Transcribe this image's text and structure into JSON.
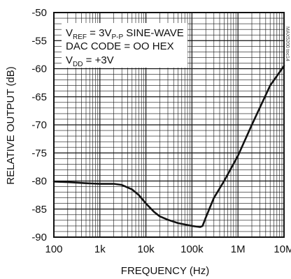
{
  "chart_data": {
    "type": "line",
    "xscale": "log",
    "xlim": [
      100,
      10000000
    ],
    "ylim": [
      -90,
      -50
    ],
    "xlabel": "FREQUENCY (Hz)",
    "ylabel": "RELATIVE OUTPUT (dB)",
    "x_ticks": [
      {
        "value": 100,
        "label": "100"
      },
      {
        "value": 1000,
        "label": "1k"
      },
      {
        "value": 10000,
        "label": "10k"
      },
      {
        "value": 100000,
        "label": "100k"
      },
      {
        "value": 1000000,
        "label": "1M"
      },
      {
        "value": 10000000,
        "label": "10M"
      }
    ],
    "y_ticks": [
      {
        "value": -50,
        "label": "-50"
      },
      {
        "value": -55,
        "label": "-55"
      },
      {
        "value": -60,
        "label": "-60"
      },
      {
        "value": -65,
        "label": "-65"
      },
      {
        "value": -70,
        "label": "-70"
      },
      {
        "value": -75,
        "label": "-75"
      },
      {
        "value": -80,
        "label": "-80"
      },
      {
        "value": -85,
        "label": "-85"
      },
      {
        "value": -90,
        "label": "-90"
      }
    ],
    "grid": true,
    "annotations": {
      "vref": {
        "main": "V",
        "sub": "REF",
        "rest1": " = 3V",
        "sub2": "P-P",
        "rest2": " SINE-WAVE"
      },
      "dac": "DAC CODE = OO HEX",
      "vdd": {
        "main": "V",
        "sub": "DD",
        "rest": " = +3V"
      }
    },
    "side_id": "MAX5200 toc14",
    "series": [
      {
        "x": [
          100,
          200,
          500,
          1000,
          2000,
          3000,
          5000,
          7000,
          10000,
          15000,
          20000,
          30000,
          50000,
          100000,
          150000,
          170000,
          200000,
          300000,
          500000,
          1000000,
          2000000,
          5000000,
          10000000
        ],
        "y": [
          -80.1,
          -80.2,
          -80.4,
          -80.5,
          -80.5,
          -80.7,
          -81.5,
          -82.5,
          -84.0,
          -85.5,
          -86.3,
          -86.9,
          -87.5,
          -88.0,
          -88.2,
          -88.0,
          -86.5,
          -83.0,
          -80.0,
          -75.5,
          -70.0,
          -63.0,
          -59.5
        ]
      }
    ]
  }
}
